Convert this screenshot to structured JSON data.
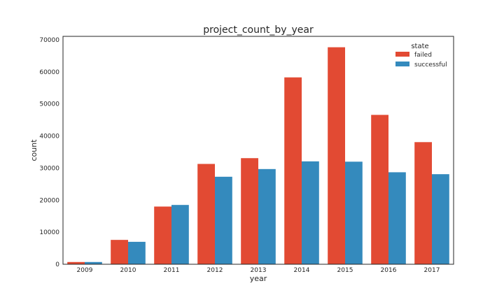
{
  "chart_data": {
    "type": "bar",
    "title": "project_count_by_year",
    "xlabel": "year",
    "ylabel": "count",
    "categories": [
      "2009",
      "2010",
      "2011",
      "2012",
      "2013",
      "2014",
      "2015",
      "2016",
      "2017"
    ],
    "series": [
      {
        "name": "failed",
        "color": "#E24A33",
        "values": [
          700,
          7600,
          18000,
          31300,
          33100,
          58300,
          67700,
          46600,
          38100
        ]
      },
      {
        "name": "successful",
        "color": "#348ABD",
        "values": [
          700,
          7000,
          18500,
          27300,
          29700,
          32100,
          32000,
          28700,
          28100
        ]
      }
    ],
    "yticks": [
      0,
      10000,
      20000,
      30000,
      40000,
      50000,
      60000,
      70000
    ],
    "ylim": [
      0,
      71100
    ],
    "grid": false,
    "legend": {
      "title": "state",
      "placement": "top-right"
    }
  }
}
